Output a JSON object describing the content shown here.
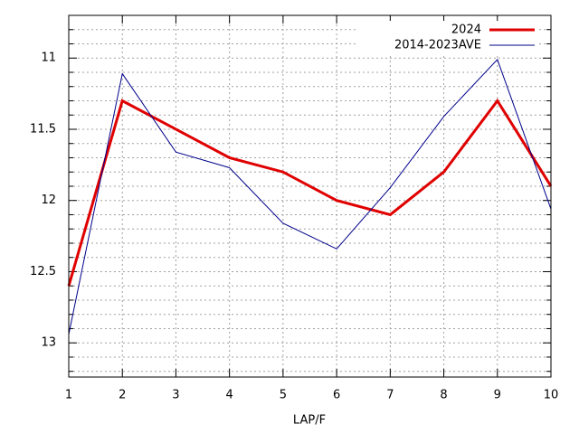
{
  "chart_data": {
    "type": "line",
    "x_label": "LAP/F",
    "x": [
      1,
      2,
      3,
      4,
      5,
      6,
      7,
      8,
      9,
      10
    ],
    "series": [
      {
        "name": "2024",
        "color": "#e00000",
        "width": 3,
        "values": [
          12.6,
          11.3,
          11.5,
          11.7,
          11.8,
          12.0,
          12.1,
          11.8,
          11.3,
          11.9
        ]
      },
      {
        "name": "2014-2023AVE",
        "color": "#00008b",
        "width": 1,
        "values": [
          12.94,
          11.11,
          11.66,
          11.77,
          12.16,
          12.34,
          11.91,
          11.41,
          11.01,
          12.06
        ]
      }
    ],
    "xlim": [
      1,
      10
    ],
    "xticks": [
      1,
      2,
      3,
      4,
      5,
      6,
      7,
      8,
      9,
      10
    ],
    "ylim": [
      13.24,
      10.7
    ],
    "yticks": [
      11,
      11.5,
      12,
      12.5,
      13
    ],
    "yminorticks": [
      10.8,
      10.9,
      11.1,
      11.2,
      11.3,
      11.4,
      11.6,
      11.7,
      11.8,
      11.9,
      12.1,
      12.2,
      12.3,
      12.4,
      12.6,
      12.7,
      12.8,
      12.9,
      13.1,
      13.2
    ],
    "grid": true,
    "legend": "top-right"
  }
}
